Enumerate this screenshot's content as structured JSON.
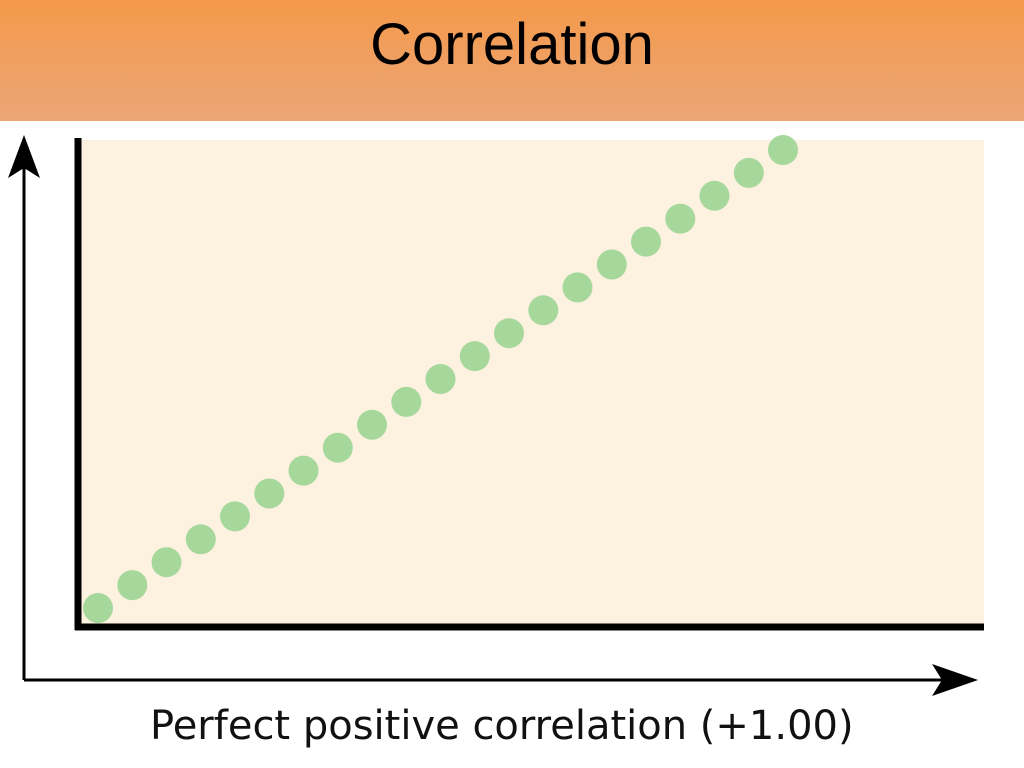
{
  "header": {
    "title": "Correlation"
  },
  "colors": {
    "header_top": "#f4994a",
    "header_bottom": "#eba677",
    "plot_background": "#fdf1e0",
    "point": "#a6d89c",
    "axis": "#000000"
  },
  "chart_data": {
    "type": "scatter",
    "title": "",
    "caption": "Perfect positive correlation (+1.00)",
    "xlabel": "",
    "ylabel": "",
    "grid": false,
    "points": [
      {
        "x": 1,
        "y": 1
      },
      {
        "x": 2,
        "y": 2
      },
      {
        "x": 3,
        "y": 3
      },
      {
        "x": 4,
        "y": 4
      },
      {
        "x": 5,
        "y": 5
      },
      {
        "x": 6,
        "y": 6
      },
      {
        "x": 7,
        "y": 7
      },
      {
        "x": 8,
        "y": 8
      },
      {
        "x": 9,
        "y": 9
      },
      {
        "x": 10,
        "y": 10
      },
      {
        "x": 11,
        "y": 11
      },
      {
        "x": 12,
        "y": 12
      },
      {
        "x": 13,
        "y": 13
      },
      {
        "x": 14,
        "y": 14
      },
      {
        "x": 15,
        "y": 15
      },
      {
        "x": 16,
        "y": 16
      },
      {
        "x": 17,
        "y": 17
      },
      {
        "x": 18,
        "y": 18
      },
      {
        "x": 19,
        "y": 19
      },
      {
        "x": 20,
        "y": 20
      },
      {
        "x": 21,
        "y": 21
      }
    ],
    "xlim": [
      1,
      21
    ],
    "ylim": [
      1,
      21
    ]
  }
}
